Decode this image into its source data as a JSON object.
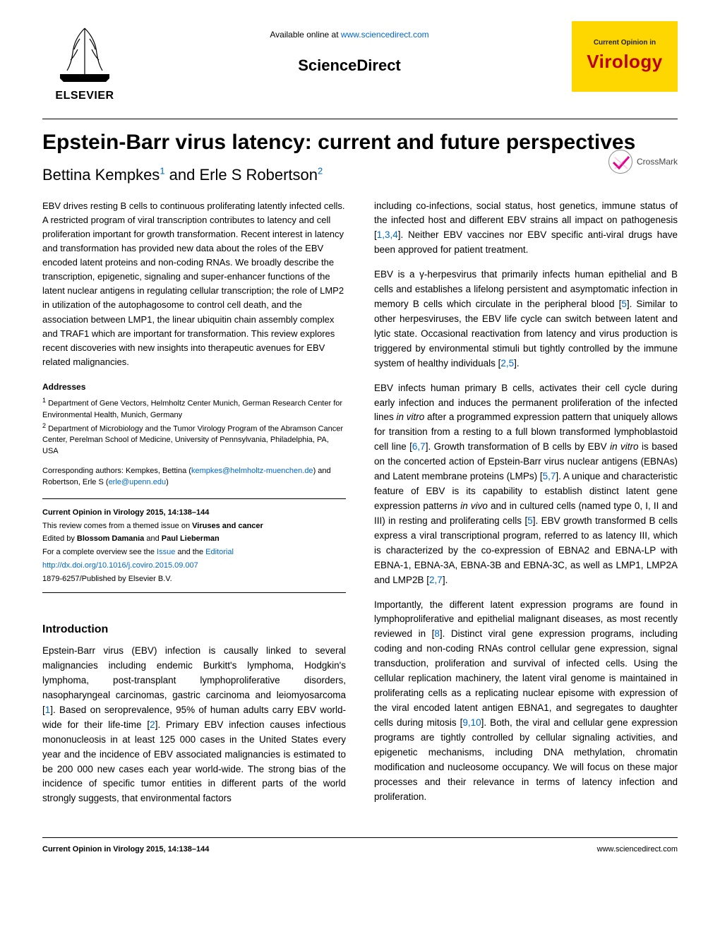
{
  "header": {
    "available_text": "Available online at ",
    "available_url": "www.sciencedirect.com",
    "sciencedirect": "ScienceDirect",
    "elsevier": "ELSEVIER",
    "journal_top": "Current Opinion in",
    "journal_name": "Virology"
  },
  "title": "Epstein-Barr virus latency: current and future perspectives",
  "authors_line": {
    "a1": "Bettina Kempkes",
    "sup1": "1",
    "mid": " and Erle S Robertson",
    "sup2": "2"
  },
  "crossmark": "CrossMark",
  "abstract": "EBV drives resting B cells to continuous proliferating latently infected cells. A restricted program of viral transcription contributes to latency and cell proliferation important for growth transformation. Recent interest in latency and transformation has provided new data about the roles of the EBV encoded latent proteins and non-coding RNAs. We broadly describe the transcription, epigenetic, signaling and super-enhancer functions of the latent nuclear antigens in regulating cellular transcription; the role of LMP2 in utilization of the autophagosome to control cell death, and the association between LMP1, the linear ubiquitin chain assembly complex and TRAF1 which are important for transformation. This review explores recent discoveries with new insights into therapeutic avenues for EBV related malignancies.",
  "addresses": {
    "heading": "Addresses",
    "a1": "Department of Gene Vectors, Helmholtz Center Munich, German Research Center for Environmental Health, Munich, Germany",
    "a2": "Department of Microbiology and the Tumor Virology Program of the Abramson Cancer Center, Perelman School of Medicine, University of Pennsylvania, Philadelphia, PA, USA"
  },
  "corresponding": {
    "label": "Corresponding authors: Kempkes, Bettina",
    "email1": "kempkes@helmholtz-muenchen.de",
    "mid": ") and Robertson, Erle S",
    "email2": "erle@upenn.edu"
  },
  "infobox": {
    "citation": "Current Opinion in Virology 2015, 14:138–144",
    "theme1": "This review comes from a themed issue on ",
    "theme2": "Viruses and cancer",
    "edited_label": "Edited by ",
    "editor1": "Blossom Damania",
    "edited_and": " and ",
    "editor2": "Paul Lieberman",
    "overview_pre": "For a complete overview see the ",
    "issue_link": "Issue",
    "overview_and": " and the ",
    "editorial_link": "Editorial",
    "doi": "http://dx.doi.org/10.1016/j.coviro.2015.09.007",
    "issn": "1879-6257/Published by Elsevier B.V."
  },
  "intro_heading": "Introduction",
  "left_intro": "Epstein-Barr virus (EBV) infection is causally linked to several malignancies including endemic Burkitt's lymphoma, Hodgkin's lymphoma, post-transplant lymphoproliferative disorders, nasopharyngeal carcinomas, gastric carcinoma and leiomyosarcoma [1]. Based on seroprevalence, 95% of human adults carry EBV world-wide for their life-time [2]. Primary EBV infection causes infectious mononucleosis in at least 125 000 cases in the United States every year and the incidence of EBV associated malignancies is estimated to be 200 000 new cases each year world-wide. The strong bias of the incidence of specific tumor entities in different parts of the world strongly suggests, that environmental factors",
  "right_p1": "including co-infections, social status, host genetics, immune status of the infected host and different EBV strains all impact on pathogenesis [1,3,4]. Neither EBV vaccines nor EBV specific anti-viral drugs have been approved for patient treatment.",
  "right_p2": "EBV is a γ-herpesvirus that primarily infects human epithelial and B cells and establishes a lifelong persistent and asymptomatic infection in memory B cells which circulate in the peripheral blood [5]. Similar to other herpesviruses, the EBV life cycle can switch between latent and lytic state. Occasional reactivation from latency and virus production is triggered by environmental stimuli but tightly controlled by the immune system of healthy individuals [2,5].",
  "right_p3": "EBV infects human primary B cells, activates their cell cycle during early infection and induces the permanent proliferation of the infected lines in vitro after a programmed expression pattern that uniquely allows for transition from a resting to a full blown transformed lymphoblastoid cell line [6,7]. Growth transformation of B cells by EBV in vitro is based on the concerted action of Epstein-Barr virus nuclear antigens (EBNAs) and Latent membrane proteins (LMPs) [5,7]. A unique and characteristic feature of EBV is its capability to establish distinct latent gene expression patterns in vivo and in cultured cells (named type 0, I, II and III) in resting and proliferating cells [5]. EBV growth transformed B cells express a viral transcriptional program, referred to as latency III, which is characterized by the co-expression of EBNA2 and EBNA-LP with EBNA-1, EBNA-3A, EBNA-3B and EBNA-3C, as well as LMP1, LMP2A and LMP2B [2,7].",
  "right_p4": "Importantly, the different latent expression programs are found in lymphoproliferative and epithelial malignant diseases, as most recently reviewed in [8]. Distinct viral gene expression programs, including coding and non-coding RNAs control cellular gene expression, signal transduction, proliferation and survival of infected cells. Using the cellular replication machinery, the latent viral genome is maintained in proliferating cells as a replicating nuclear episome with expression of the viral encoded latent antigen EBNA1, and segregates to daughter cells during mitosis [9,10]. Both, the viral and cellular gene expression programs are tightly controlled by cellular signaling activities, and epigenetic mechanisms, including DNA methylation, chromatin modification and nucleosome occupancy. We will focus on these major processes and their relevance in terms of latency infection and proliferation.",
  "footer": {
    "left": "Current Opinion in Virology 2015, 14:138–144",
    "right": "www.sciencedirect.com"
  },
  "colors": {
    "link": "#0066cc",
    "badge_bg": "#ffd700",
    "virology": "#b00000"
  }
}
